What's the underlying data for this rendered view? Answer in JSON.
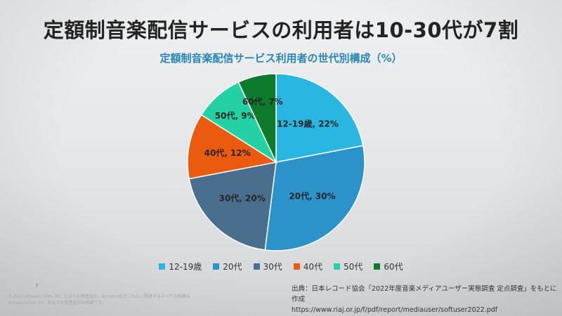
{
  "slide": {
    "title": "定額制音楽配信サービスの利用者は10-30代が7割",
    "page_number": "7",
    "copyright_line1": "©2023 Amazon.com, Inc. 又はその関連会社。Amazon及びこれらに関連するすべての商標は、",
    "copyright_line2": "Amazon.com, Inc. 又はその関連会社の商標です。",
    "source_line1": "出典：日本レコード協会「2022年度音楽メディアユーザー実態調査 定点調査」をもとに作成",
    "source_line2": "https://www.riaj.or.jp/f/pdf/report/mediauser/softuser2022.pdf"
  },
  "chart_data": {
    "type": "pie",
    "title": "定額制音楽配信サービス利用者の世代別構成（%）",
    "start_angle_deg": 0,
    "direction": "clockwise",
    "legend_position": "bottom",
    "slices": [
      {
        "category": "12-19歳",
        "value": 22,
        "label": "12-19歳, 22%",
        "color": "#29b6e3"
      },
      {
        "category": "20代",
        "value": 30,
        "label": "20代, 30%",
        "color": "#2b93c9"
      },
      {
        "category": "30代",
        "value": 20,
        "label": "30代, 20%",
        "color": "#4a6e8d"
      },
      {
        "category": "40代",
        "value": 12,
        "label": "40代, 12%",
        "color": "#ec5a10"
      },
      {
        "category": "50代",
        "value": 9,
        "label": "50代, 9%",
        "color": "#23d1a4"
      },
      {
        "category": "60代",
        "value": 7,
        "label": "60代, 7%",
        "color": "#0d7a2c"
      }
    ]
  }
}
